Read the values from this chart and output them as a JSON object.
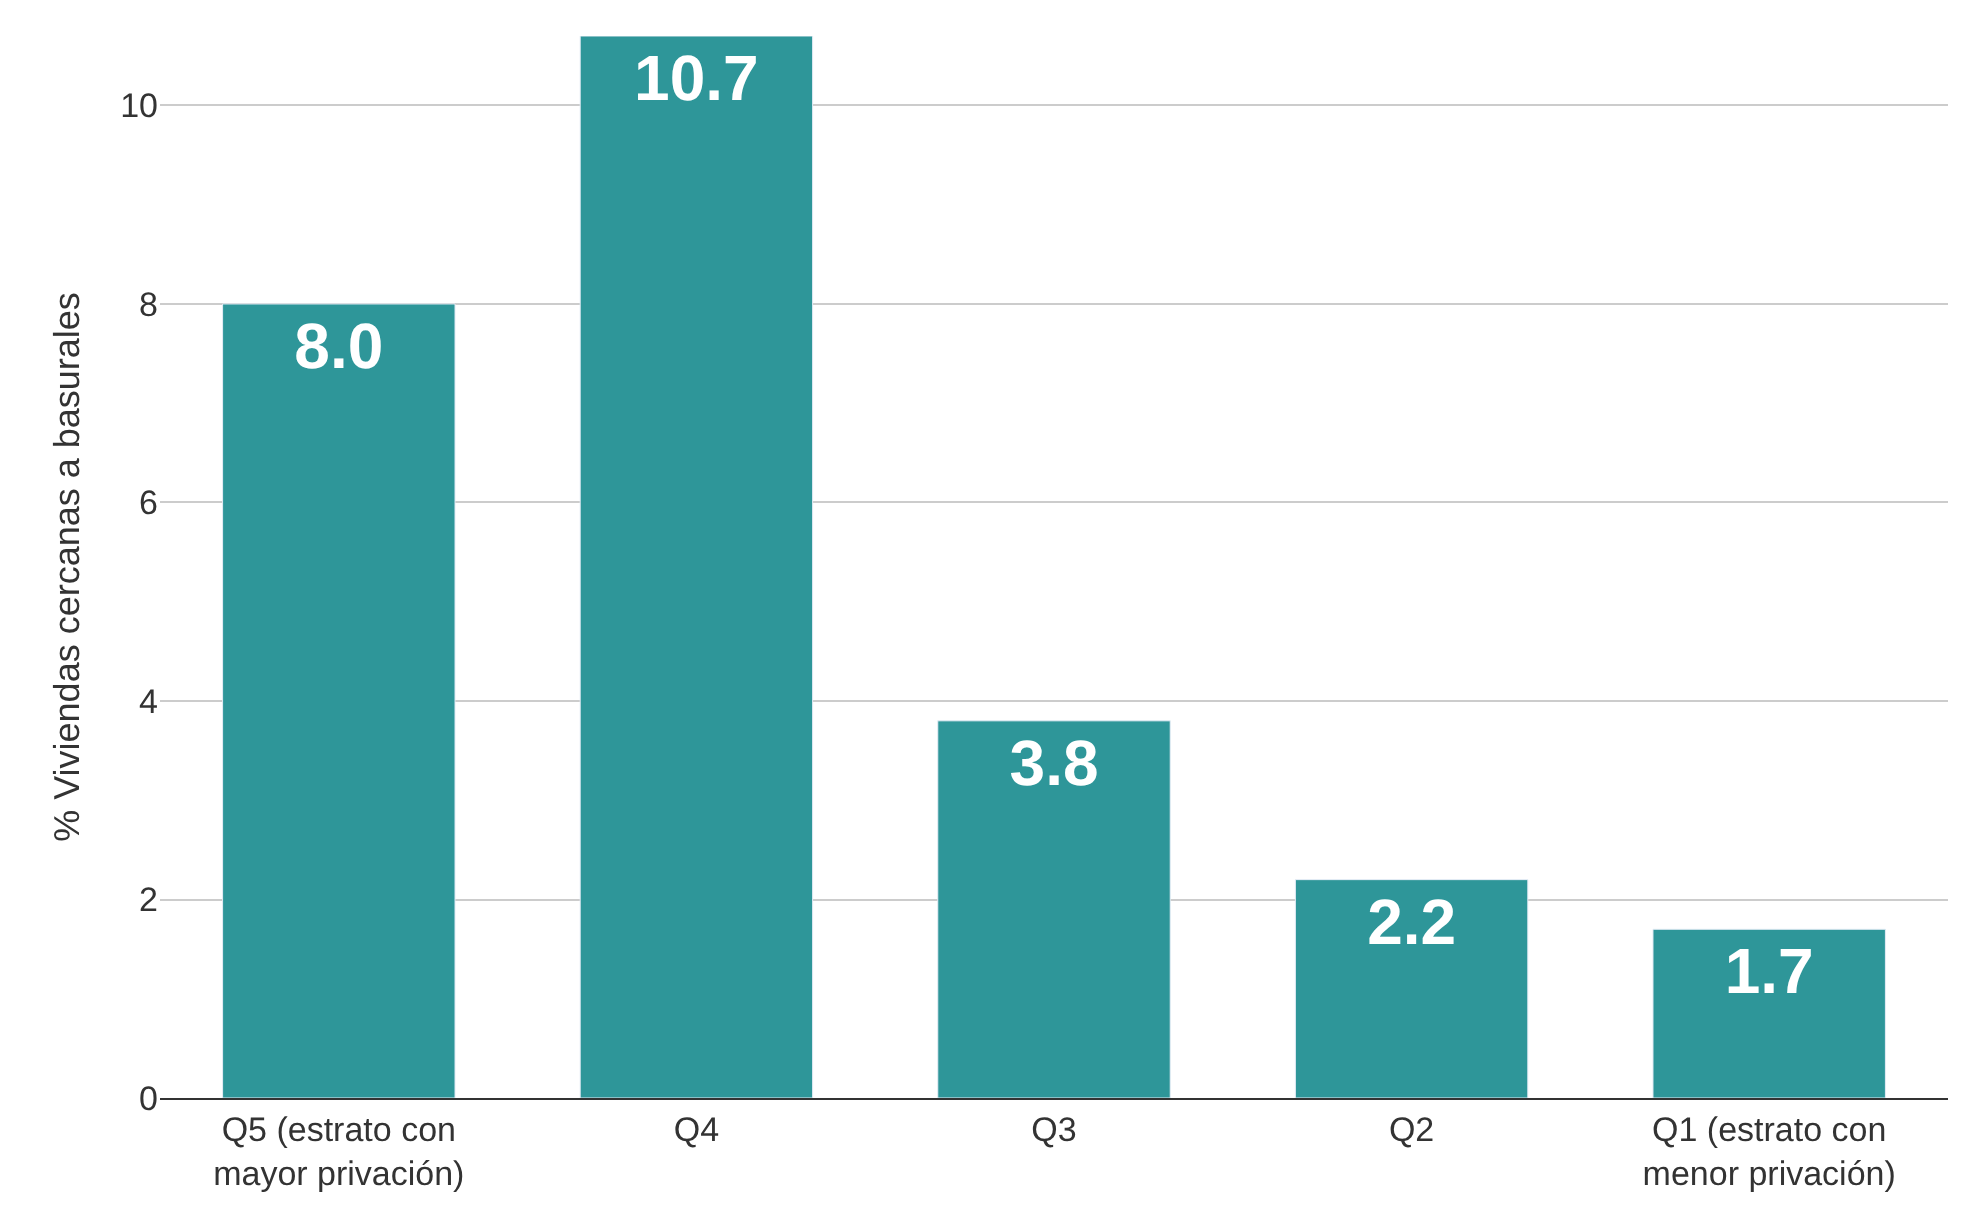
{
  "chart_data": {
    "type": "bar",
    "ylabel": "% Viviendas cercanas a basurales",
    "categories": [
      "Q5 (estrato con mayor privación)",
      "Q4",
      "Q3",
      "Q2",
      "Q1 (estrato con menor privación)"
    ],
    "values": [
      8.0,
      10.7,
      3.8,
      2.2,
      1.7
    ],
    "value_labels": [
      "8.0",
      "10.7",
      "3.8",
      "2.2",
      "1.7"
    ],
    "color": "#2e9699",
    "ylim": [
      0,
      10.7
    ],
    "yticks": [
      0,
      2,
      4,
      6,
      8,
      10
    ],
    "grid": "y"
  }
}
